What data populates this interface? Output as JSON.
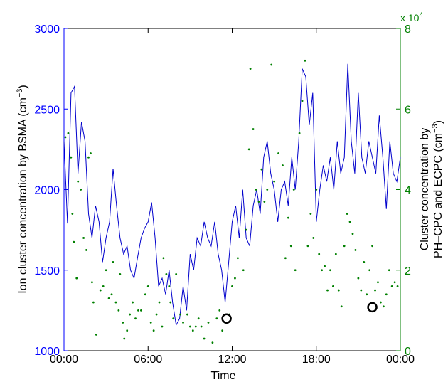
{
  "chart_data": {
    "type": "dual-axis-line-scatter",
    "xlabel": "Time",
    "ylabel": "Ion cluster concentration by BSMA  (cm",
    "ylabel_exponent": "−3",
    "ylabel_end": ")",
    "y2label_line1": "Cluster concentration by",
    "y2label_line2": "PH–CPC and ECPC (cm",
    "y2label_exponent": "−3",
    "y2label_end": ")",
    "y2_multiplier": "x 10",
    "y2_multiplier_exponent": "4",
    "xlim": [
      0,
      24
    ],
    "xticks": [
      {
        "value": 0,
        "label": "00:00"
      },
      {
        "value": 6,
        "label": "06:00"
      },
      {
        "value": 12,
        "label": "12:00"
      },
      {
        "value": 18,
        "label": "18:00"
      },
      {
        "value": 24,
        "label": "00:00"
      }
    ],
    "ylim": [
      1000,
      3000
    ],
    "yticks": [
      1000,
      1500,
      2000,
      2500,
      3000
    ],
    "ycolor": "#0000ff",
    "y2lim": [
      0,
      80000
    ],
    "y2ticks": [
      {
        "value": 0,
        "label": "0"
      },
      {
        "value": 20000,
        "label": "2"
      },
      {
        "value": 40000,
        "label": "4"
      },
      {
        "value": 60000,
        "label": "6"
      },
      {
        "value": 80000,
        "label": "8"
      }
    ],
    "y2color": "#008000",
    "series": [
      {
        "kind": "line",
        "axis": "y",
        "color": "#0000cc",
        "x": [
          0,
          0.25,
          0.5,
          0.75,
          1,
          1.25,
          1.5,
          1.75,
          2,
          2.25,
          2.5,
          2.75,
          3,
          3.25,
          3.5,
          3.75,
          4,
          4.25,
          4.5,
          4.75,
          5,
          5.25,
          5.5,
          5.75,
          6,
          6.25,
          6.5,
          6.75,
          7,
          7.25,
          7.5,
          7.75,
          8,
          8.25,
          8.5,
          8.75,
          9,
          9.25,
          9.5,
          9.75,
          10,
          10.25,
          10.5,
          10.75,
          11,
          11.25,
          11.5,
          11.75,
          12,
          12.25,
          12.5,
          12.75,
          13,
          13.25,
          13.5,
          13.75,
          14,
          14.25,
          14.5,
          14.75,
          15,
          15.25,
          15.5,
          15.75,
          16,
          16.25,
          16.5,
          16.75,
          17,
          17.25,
          17.5,
          17.75,
          18,
          18.25,
          18.5,
          18.75,
          19,
          19.25,
          19.5,
          19.75,
          20,
          20.25,
          20.5,
          20.75,
          21,
          21.25,
          21.5,
          21.75,
          22,
          22.25,
          22.5,
          22.75,
          23,
          23.25,
          23.5,
          23.75,
          24
        ],
        "values": [
          2300,
          1790,
          2600,
          2640,
          2100,
          2420,
          2300,
          1850,
          1700,
          1900,
          1800,
          1550,
          1700,
          1800,
          2130,
          1900,
          1700,
          1600,
          1650,
          1500,
          1450,
          1580,
          1700,
          1760,
          1800,
          1920,
          1700,
          1400,
          1450,
          1350,
          1500,
          1300,
          1160,
          1200,
          1400,
          1250,
          1600,
          1500,
          1700,
          1650,
          1800,
          1700,
          1650,
          1800,
          1600,
          1500,
          1300,
          1550,
          1800,
          1900,
          1700,
          2000,
          1700,
          1650,
          1900,
          2000,
          1850,
          2200,
          2300,
          2100,
          2000,
          1800,
          2000,
          2050,
          1900,
          2200,
          2000,
          2300,
          2750,
          2700,
          2400,
          2600,
          1800,
          2000,
          2150,
          2050,
          2200,
          2000,
          2300,
          2100,
          2200,
          2780,
          2300,
          2100,
          2600,
          2200,
          2100,
          2300,
          2200,
          2100,
          2460,
          2200,
          1880,
          2300,
          2100,
          2050,
          2200
        ]
      },
      {
        "kind": "dots",
        "axis": "y2",
        "color": "#008000",
        "x": [
          0.1,
          0.3,
          0.5,
          0.6,
          0.7,
          0.9,
          1.0,
          1.2,
          1.4,
          1.6,
          1.75,
          1.9,
          2.0,
          2.1,
          2.3,
          2.6,
          2.8,
          3.0,
          3.2,
          3.4,
          3.5,
          3.7,
          3.9,
          4.0,
          4.2,
          4.3,
          4.5,
          4.7,
          4.9,
          5.1,
          5.3,
          5.5,
          5.8,
          6.0,
          6.2,
          6.4,
          6.6,
          6.8,
          7.0,
          7.1,
          7.3,
          7.5,
          7.6,
          7.8,
          8.0,
          8.3,
          8.5,
          8.8,
          9.0,
          9.2,
          9.4,
          9.6,
          9.8,
          10.0,
          10.3,
          10.6,
          10.9,
          11.1,
          11.3,
          11.5,
          11.8,
          12.0,
          12.2,
          12.4,
          12.8,
          13.0,
          13.2,
          13.3,
          13.5,
          13.7,
          13.9,
          14.1,
          14.3,
          14.5,
          14.8,
          15.0,
          15.3,
          15.6,
          15.8,
          16.0,
          16.2,
          16.4,
          16.5,
          16.8,
          17.0,
          17.2,
          17.4,
          17.6,
          17.8,
          18.0,
          18.2,
          18.4,
          18.6,
          18.8,
          19.0,
          19.2,
          19.4,
          19.6,
          19.8,
          20.0,
          20.2,
          20.4,
          20.6,
          20.8,
          21.0,
          21.2,
          21.4,
          21.6,
          21.8,
          22.0,
          22.2,
          22.4,
          22.6,
          22.8,
          23.0,
          23.2,
          23.4,
          23.6,
          23.8
        ],
        "values": [
          53000,
          54000,
          48000,
          34000,
          27000,
          18000,
          42000,
          40000,
          28000,
          25000,
          48000,
          49000,
          17000,
          12000,
          4000,
          15000,
          16000,
          20000,
          13000,
          14000,
          22000,
          12000,
          10000,
          19000,
          7000,
          3000,
          5000,
          9000,
          12000,
          8000,
          10000,
          10000,
          14000,
          16000,
          7000,
          5000,
          9000,
          12000,
          6000,
          23000,
          19000,
          16000,
          12000,
          8000,
          19000,
          9000,
          7000,
          9000,
          6000,
          5000,
          6000,
          8000,
          6000,
          3000,
          7000,
          2000,
          8000,
          10000,
          5000,
          7000,
          9000,
          16000,
          18000,
          23000,
          20000,
          30000,
          50000,
          70000,
          55000,
          40000,
          37000,
          45000,
          37000,
          40000,
          71000,
          42000,
          49000,
          46000,
          23000,
          33000,
          26000,
          40000,
          20000,
          54000,
          62000,
          72000,
          26000,
          34000,
          28000,
          40000,
          24000,
          20000,
          21000,
          15000,
          20000,
          16000,
          24000,
          15000,
          11000,
          26000,
          34000,
          32000,
          29000,
          25000,
          18000,
          15000,
          22000,
          14000,
          20000,
          26000,
          15000,
          17000,
          12000,
          11000,
          14000,
          20000,
          16000,
          17000,
          16000
        ]
      },
      {
        "kind": "circles",
        "axis": "y",
        "color": "#000000",
        "x": [
          11.6,
          22.0
        ],
        "values": [
          1200,
          1270
        ]
      }
    ]
  }
}
